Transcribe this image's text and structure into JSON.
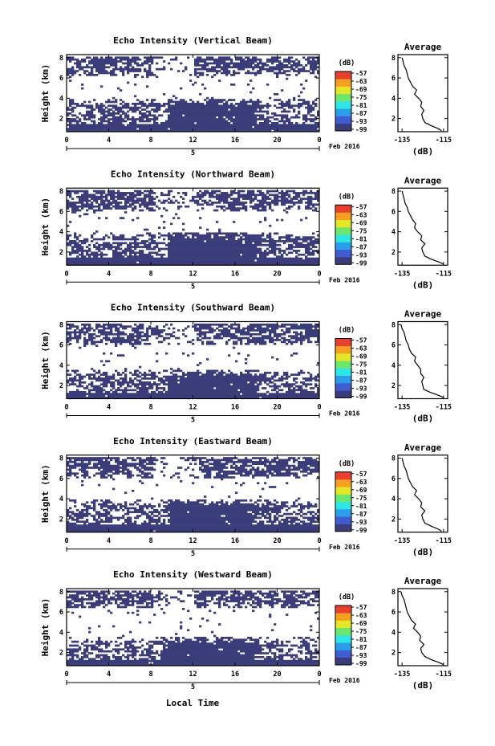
{
  "figure": {
    "xlabel": "Local Time",
    "month_label": "Feb 2016",
    "day_label": "5",
    "ylabel": "Height (km)",
    "cbar_unit": "(dB)",
    "avg_title": "Average",
    "avg_xlabel": "(dB)"
  },
  "chart_data": [
    {
      "type": "heatmap",
      "title": "Echo Intensity (Vertical Beam)",
      "xlabel": "Local Time",
      "ylabel": "Height (km)",
      "xticks": [
        "0",
        "4",
        "8",
        "12",
        "16",
        "20",
        "0"
      ],
      "xlim": [
        0,
        24
      ],
      "yticks": [
        "2",
        "4",
        "6",
        "8"
      ],
      "ylim": [
        0.7,
        8.3
      ],
      "color_label": "(dB)",
      "color_ticks": [
        "-57",
        "-63",
        "-69",
        "-75",
        "-81",
        "-87",
        "-93",
        "-99"
      ],
      "color_colors": [
        "#3a3d7a",
        "#3f5dd0",
        "#2a9ee8",
        "#2ee6e6",
        "#6ce66c",
        "#e6e629",
        "#f5a020",
        "#e8402e"
      ],
      "echo_layers_km": [
        {
          "from": 1.0,
          "to": 4.0
        },
        {
          "from": 6.2,
          "to": 8.2
        }
      ],
      "average_profile": {
        "title": "Average",
        "xlabel": "(dB)",
        "xticks": [
          "-135",
          "-115"
        ],
        "xlim": [
          -137,
          -113
        ],
        "yticks": [
          "2",
          "4",
          "6",
          "8"
        ],
        "ylim": [
          0.7,
          8.3
        ],
        "height_km": [
          0.8,
          1.0,
          1.3,
          1.6,
          2.0,
          2.4,
          2.8,
          3.2,
          3.6,
          4.0,
          4.4,
          4.8,
          5.2,
          5.6,
          6.0,
          6.4,
          6.8,
          7.2,
          7.6,
          8.0
        ],
        "db": [
          -116,
          -117.5,
          -121,
          -124,
          -125,
          -125.5,
          -124.5,
          -126,
          -125.5,
          -127,
          -129,
          -128,
          -130,
          -131,
          -132,
          -132.5,
          -133,
          -134,
          -134.5,
          -135
        ]
      }
    },
    {
      "type": "heatmap",
      "title": "Echo Intensity (Northward Beam)",
      "xlabel": "Local Time",
      "ylabel": "Height (km)",
      "xticks": [
        "0",
        "4",
        "8",
        "12",
        "16",
        "20",
        "0"
      ],
      "xlim": [
        0,
        24
      ],
      "yticks": [
        "2",
        "4",
        "6",
        "8"
      ],
      "ylim": [
        0.7,
        8.3
      ],
      "color_label": "(dB)",
      "color_ticks": [
        "-57",
        "-63",
        "-69",
        "-75",
        "-81",
        "-87",
        "-93",
        "-99"
      ],
      "color_colors": [
        "#3a3d7a",
        "#3f5dd0",
        "#2a9ee8",
        "#2ee6e6",
        "#6ce66c",
        "#e6e629",
        "#f5a020",
        "#e8402e"
      ],
      "echo_layers_km": [
        {
          "from": 1.0,
          "to": 4.0
        },
        {
          "from": 6.0,
          "to": 8.2
        }
      ],
      "average_profile": {
        "title": "Average",
        "xlabel": "(dB)",
        "xticks": [
          "-135",
          "-115"
        ],
        "xlim": [
          -137,
          -113
        ],
        "yticks": [
          "2",
          "4",
          "6",
          "8"
        ],
        "ylim": [
          0.7,
          8.3
        ],
        "height_km": [
          0.8,
          1.0,
          1.3,
          1.6,
          2.0,
          2.4,
          2.8,
          3.2,
          3.6,
          4.0,
          4.4,
          4.8,
          5.2,
          5.6,
          6.0,
          6.4,
          6.8,
          7.2,
          7.6,
          8.0
        ],
        "db": [
          -115,
          -117,
          -121,
          -124,
          -125,
          -125.5,
          -124,
          -126,
          -125.5,
          -127.5,
          -129,
          -128.5,
          -130,
          -131,
          -132,
          -132.5,
          -133.5,
          -134,
          -134.5,
          -135
        ]
      }
    },
    {
      "type": "heatmap",
      "title": "Echo Intensity (Southward Beam)",
      "xlabel": "Local Time",
      "ylabel": "Height (km)",
      "xticks": [
        "0",
        "4",
        "8",
        "12",
        "16",
        "20",
        "0"
      ],
      "xlim": [
        0,
        24
      ],
      "yticks": [
        "2",
        "4",
        "6",
        "8"
      ],
      "ylim": [
        0.7,
        8.3
      ],
      "color_label": "(dB)",
      "color_ticks": [
        "-57",
        "-63",
        "-69",
        "-75",
        "-81",
        "-87",
        "-93",
        "-99"
      ],
      "color_colors": [
        "#3a3d7a",
        "#3f5dd0",
        "#2a9ee8",
        "#2ee6e6",
        "#6ce66c",
        "#e6e629",
        "#f5a020",
        "#e8402e"
      ],
      "echo_layers_km": [
        {
          "from": 0.9,
          "to": 3.6
        },
        {
          "from": 6.0,
          "to": 8.2
        }
      ],
      "average_profile": {
        "title": "Average",
        "xlabel": "(dB)",
        "xticks": [
          "-135",
          "-115"
        ],
        "xlim": [
          -137,
          -113
        ],
        "yticks": [
          "2",
          "4",
          "6",
          "8"
        ],
        "ylim": [
          0.7,
          8.3
        ],
        "height_km": [
          0.8,
          1.0,
          1.3,
          1.6,
          2.0,
          2.4,
          2.8,
          3.2,
          3.6,
          4.0,
          4.4,
          4.8,
          5.2,
          5.6,
          6.0,
          6.4,
          6.8,
          7.2,
          7.6,
          8.0
        ],
        "db": [
          -115,
          -117,
          -121,
          -124.5,
          -125,
          -125.5,
          -124.5,
          -126,
          -126,
          -127.5,
          -129,
          -128.5,
          -130.5,
          -131.5,
          -132,
          -133,
          -133.5,
          -134,
          -135,
          -135.5
        ]
      }
    },
    {
      "type": "heatmap",
      "title": "Echo Intensity (Eastward Beam)",
      "xlabel": "Local Time",
      "ylabel": "Height (km)",
      "xticks": [
        "0",
        "4",
        "8",
        "12",
        "16",
        "20",
        "0"
      ],
      "xlim": [
        0,
        24
      ],
      "yticks": [
        "2",
        "4",
        "6",
        "8"
      ],
      "ylim": [
        0.7,
        8.3
      ],
      "color_label": "(dB)",
      "color_ticks": [
        "-57",
        "-63",
        "-69",
        "-75",
        "-81",
        "-87",
        "-93",
        "-99"
      ],
      "color_colors": [
        "#3a3d7a",
        "#3f5dd0",
        "#2a9ee8",
        "#2ee6e6",
        "#6ce66c",
        "#e6e629",
        "#f5a020",
        "#e8402e"
      ],
      "echo_layers_km": [
        {
          "from": 1.0,
          "to": 4.0
        },
        {
          "from": 6.0,
          "to": 8.2
        }
      ],
      "average_profile": {
        "title": "Average",
        "xlabel": "(dB)",
        "xticks": [
          "-135",
          "-115"
        ],
        "xlim": [
          -137,
          -113
        ],
        "yticks": [
          "2",
          "4",
          "6",
          "8"
        ],
        "ylim": [
          0.7,
          8.3
        ],
        "height_km": [
          0.8,
          1.0,
          1.3,
          1.6,
          2.0,
          2.4,
          2.8,
          3.2,
          3.6,
          4.0,
          4.4,
          4.8,
          5.2,
          5.6,
          6.0,
          6.4,
          6.8,
          7.2,
          7.6,
          8.0
        ],
        "db": [
          -116,
          -117.5,
          -121,
          -124,
          -125,
          -125.5,
          -124,
          -126,
          -125.5,
          -127,
          -129,
          -128,
          -130,
          -131,
          -132,
          -132.5,
          -133,
          -134,
          -134.5,
          -135
        ]
      }
    },
    {
      "type": "heatmap",
      "title": "Echo Intensity (Westward Beam)",
      "xlabel": "Local Time",
      "ylabel": "Height (km)",
      "xticks": [
        "0",
        "4",
        "8",
        "12",
        "16",
        "20",
        "0"
      ],
      "xlim": [
        0,
        24
      ],
      "yticks": [
        "2",
        "4",
        "6",
        "8"
      ],
      "ylim": [
        0.7,
        8.3
      ],
      "color_label": "(dB)",
      "color_ticks": [
        "-57",
        "-63",
        "-69",
        "-75",
        "-81",
        "-87",
        "-93",
        "-99"
      ],
      "color_colors": [
        "#3a3d7a",
        "#3f5dd0",
        "#2a9ee8",
        "#2ee6e6",
        "#6ce66c",
        "#e6e629",
        "#f5a020",
        "#e8402e"
      ],
      "echo_layers_km": [
        {
          "from": 0.9,
          "to": 3.6
        },
        {
          "from": 6.4,
          "to": 8.2
        }
      ],
      "average_profile": {
        "title": "Average",
        "xlabel": "(dB)",
        "xticks": [
          "-135",
          "-115"
        ],
        "xlim": [
          -137,
          -113
        ],
        "yticks": [
          "2",
          "4",
          "6",
          "8"
        ],
        "ylim": [
          0.7,
          8.3
        ],
        "height_km": [
          0.8,
          1.0,
          1.3,
          1.6,
          2.0,
          2.4,
          2.8,
          3.2,
          3.6,
          4.0,
          4.4,
          4.8,
          5.2,
          5.6,
          6.0,
          6.4,
          6.8,
          7.2,
          7.6,
          8.0
        ],
        "db": [
          -115,
          -117,
          -121,
          -124,
          -125.5,
          -126,
          -124.5,
          -126.5,
          -126,
          -127.5,
          -129.5,
          -128.5,
          -130.5,
          -131.5,
          -132.5,
          -133,
          -133.5,
          -134,
          -135,
          -135.5
        ]
      }
    }
  ]
}
